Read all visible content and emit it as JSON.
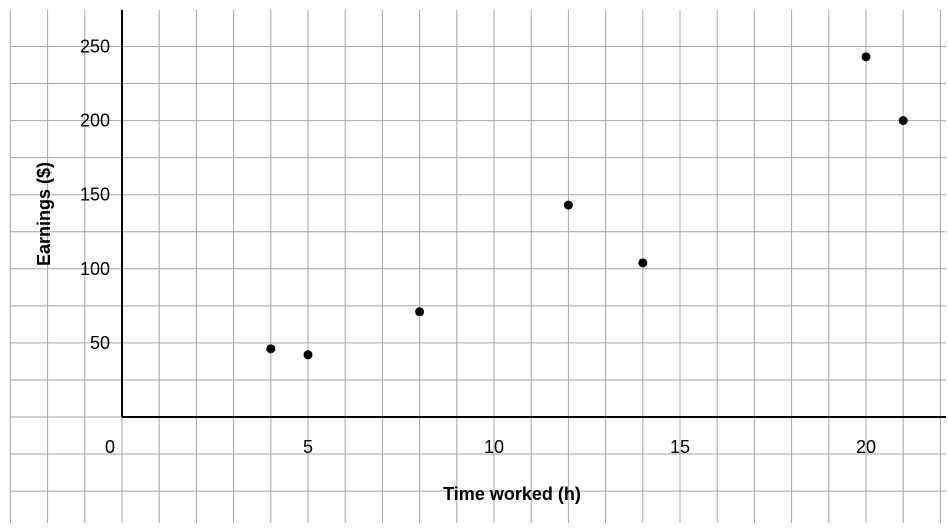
{
  "chart_data": {
    "type": "scatter",
    "title": "",
    "xlabel": "Time worked (h)",
    "ylabel": "Earnings ($)",
    "xlim": [
      0,
      22
    ],
    "ylim": [
      0,
      275
    ],
    "x_ticks": [
      0,
      5,
      10,
      15,
      20
    ],
    "y_ticks": [
      50,
      100,
      150,
      200,
      250
    ],
    "x_tick_labels": [
      "0",
      "5",
      "10",
      "15",
      "20"
    ],
    "y_tick_labels": [
      "50",
      "100",
      "150",
      "200",
      "250"
    ],
    "grid": true,
    "legend": "none",
    "series": [
      {
        "points": [
          {
            "x": 4,
            "y": 46
          },
          {
            "x": 5,
            "y": 42
          },
          {
            "x": 8,
            "y": 71
          },
          {
            "x": 12,
            "y": 143
          },
          {
            "x": 14,
            "y": 104
          },
          {
            "x": 20,
            "y": 243
          },
          {
            "x": 21,
            "y": 200
          }
        ]
      }
    ],
    "colors": {
      "grid": "#a6a6a6",
      "axis": "#000000",
      "point": "#000000"
    }
  }
}
